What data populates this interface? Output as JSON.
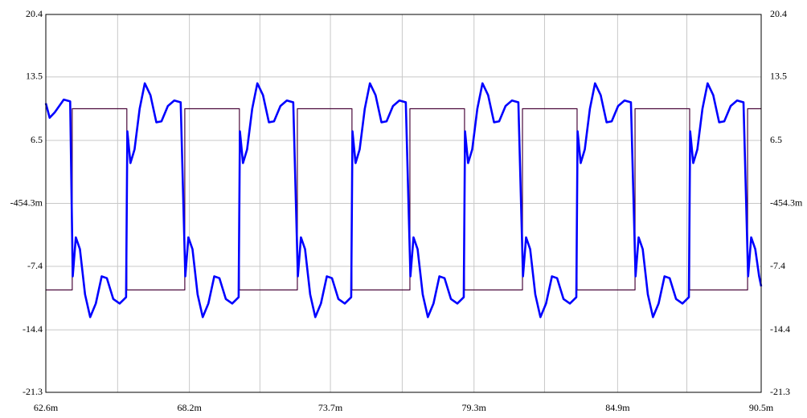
{
  "chart_data": {
    "type": "line",
    "xlim": [
      0.0626,
      0.0905
    ],
    "xticks": [
      {
        "value": 0.0626,
        "label": "62.6m"
      },
      {
        "value": 0.0682,
        "label": "68.2m"
      },
      {
        "value": 0.0737,
        "label": "73.7m"
      },
      {
        "value": 0.0793,
        "label": "79.3m"
      },
      {
        "value": 0.0849,
        "label": "84.9m"
      },
      {
        "value": 0.0905,
        "label": "90.5m"
      }
    ],
    "xminorticks": [
      0.0654,
      0.07095,
      0.0765,
      0.08205,
      0.0876
    ],
    "ylim": [
      -21.3,
      20.4
    ],
    "yticks": [
      -21.3,
      -14.4,
      -7.4,
      {
        "value": -0.4543,
        "label": "-454.3m"
      },
      6.5,
      13.5,
      20.4
    ],
    "grid": true,
    "series": [
      {
        "color": "#4b0a3c",
        "x": [
          0.0626,
          0.06363,
          0.06363,
          0.06576,
          0.06576,
          0.06802,
          0.06802,
          0.07015,
          0.07015,
          0.07241,
          0.07241,
          0.07454,
          0.07454,
          0.0768,
          0.0768,
          0.07893,
          0.07893,
          0.08119,
          0.08119,
          0.08332,
          0.08332,
          0.08558,
          0.08558,
          0.08771,
          0.08771,
          0.08997,
          0.08997,
          0.0905
        ],
        "values": [
          -10,
          -10,
          10,
          10,
          -10,
          -10,
          10,
          10,
          -10,
          -10,
          10,
          10,
          -10,
          -10,
          10,
          10,
          -10,
          -10,
          10,
          10,
          -10,
          -10,
          10,
          10,
          -10,
          -10,
          10,
          10
        ]
      },
      {
        "color": "#0000ff",
        "x": [
          0.0626,
          0.06275,
          0.06295,
          0.0633,
          0.06355,
          0.06365,
          0.06377,
          0.06393,
          0.06413,
          0.06433,
          0.06455,
          0.06478,
          0.06498,
          0.06523,
          0.06548,
          0.06573,
          0.06578,
          0.0659,
          0.06606,
          0.06626,
          0.06646,
          0.06668,
          0.06691,
          0.06711,
          0.06736,
          0.06761,
          0.06786,
          0.06804,
          0.06816,
          0.06832,
          0.06852,
          0.06872,
          0.06894,
          0.06917,
          0.06937,
          0.06962,
          0.06987,
          0.07012,
          0.07017,
          0.07029,
          0.07045,
          0.07065,
          0.07085,
          0.07107,
          0.0713,
          0.0715,
          0.07175,
          0.072,
          0.07225,
          0.07243,
          0.07255,
          0.07271,
          0.07291,
          0.07311,
          0.07333,
          0.07356,
          0.07376,
          0.07401,
          0.07426,
          0.07451,
          0.07456,
          0.07468,
          0.07484,
          0.07504,
          0.07524,
          0.07546,
          0.07569,
          0.07589,
          0.07614,
          0.07639,
          0.07664,
          0.07682,
          0.07694,
          0.0771,
          0.0773,
          0.0775,
          0.07772,
          0.07795,
          0.07815,
          0.0784,
          0.07865,
          0.0789,
          0.07895,
          0.07907,
          0.07923,
          0.07943,
          0.07963,
          0.07985,
          0.08008,
          0.08028,
          0.08053,
          0.08078,
          0.08103,
          0.08121,
          0.08133,
          0.08149,
          0.08169,
          0.08189,
          0.08211,
          0.08234,
          0.08254,
          0.08279,
          0.08304,
          0.08329,
          0.08334,
          0.08346,
          0.08362,
          0.08382,
          0.08402,
          0.08424,
          0.08447,
          0.08467,
          0.08492,
          0.08517,
          0.08542,
          0.0856,
          0.08572,
          0.08588,
          0.08608,
          0.08628,
          0.0865,
          0.08673,
          0.08693,
          0.08718,
          0.08743,
          0.08768,
          0.08773,
          0.08785,
          0.08801,
          0.08821,
          0.08841,
          0.08863,
          0.08886,
          0.08906,
          0.08931,
          0.08956,
          0.08981,
          0.08999,
          0.09011,
          0.09027,
          0.09042,
          0.0905
        ],
        "values": [
          10.6,
          9.0,
          9.6,
          11.0,
          10.8,
          -8.5,
          -4.2,
          -5.5,
          -10.5,
          -13.0,
          -11.5,
          -8.5,
          -8.7,
          -11.0,
          -11.5,
          -10.8,
          7.5,
          4.0,
          5.5,
          10.0,
          12.8,
          11.5,
          8.5,
          8.6,
          10.3,
          10.9,
          10.7,
          -8.5,
          -4.2,
          -5.5,
          -10.5,
          -13.0,
          -11.5,
          -8.5,
          -8.7,
          -11.0,
          -11.5,
          -10.8,
          7.5,
          4.0,
          5.5,
          10.0,
          12.8,
          11.5,
          8.5,
          8.6,
          10.3,
          10.9,
          10.7,
          -8.5,
          -4.2,
          -5.5,
          -10.5,
          -13.0,
          -11.5,
          -8.5,
          -8.7,
          -11.0,
          -11.5,
          -10.8,
          7.5,
          4.0,
          5.5,
          10.0,
          12.8,
          11.5,
          8.5,
          8.6,
          10.3,
          10.9,
          10.7,
          -8.5,
          -4.2,
          -5.5,
          -10.5,
          -13.0,
          -11.5,
          -8.5,
          -8.7,
          -11.0,
          -11.5,
          -10.8,
          7.5,
          4.0,
          5.5,
          10.0,
          12.8,
          11.5,
          8.5,
          8.6,
          10.3,
          10.9,
          10.7,
          -8.5,
          -4.2,
          -5.5,
          -10.5,
          -13.0,
          -11.5,
          -8.5,
          -8.7,
          -11.0,
          -11.5,
          -10.8,
          7.5,
          4.0,
          5.5,
          10.0,
          12.8,
          11.5,
          8.5,
          8.6,
          10.3,
          10.9,
          10.7,
          -8.5,
          -4.2,
          -5.5,
          -10.5,
          -13.0,
          -11.5,
          -8.5,
          -8.7,
          -11.0,
          -11.5,
          -10.8,
          7.5,
          4.0,
          5.5,
          10.0,
          12.8,
          11.5,
          8.5,
          8.6,
          10.3,
          10.9,
          10.7,
          -8.5,
          -4.2,
          -5.5,
          -8.5,
          -9.6
        ]
      }
    ]
  }
}
